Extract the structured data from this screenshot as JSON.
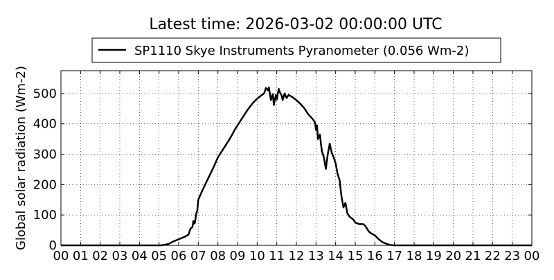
{
  "chart_data": {
    "type": "line",
    "title": "Latest time: 2026-03-02 00:00:00 UTC",
    "xlabel": "",
    "ylabel": "Global solar radiation (Wm-2)",
    "xlim": [
      0,
      24
    ],
    "ylim": [
      0,
      575
    ],
    "grid": true,
    "legend": {
      "placement": "top-center",
      "entries": [
        "SP1110 Skye Instruments Pyranometer (0.056 Wm-2)"
      ]
    },
    "x_ticks": [
      {
        "value": 0,
        "label": "00"
      },
      {
        "value": 1,
        "label": "01"
      },
      {
        "value": 2,
        "label": "02"
      },
      {
        "value": 3,
        "label": "03"
      },
      {
        "value": 4,
        "label": "04"
      },
      {
        "value": 5,
        "label": "05"
      },
      {
        "value": 6,
        "label": "06"
      },
      {
        "value": 7,
        "label": "07"
      },
      {
        "value": 8,
        "label": "08"
      },
      {
        "value": 9,
        "label": "09"
      },
      {
        "value": 10,
        "label": "10"
      },
      {
        "value": 11,
        "label": "11"
      },
      {
        "value": 12,
        "label": "12"
      },
      {
        "value": 13,
        "label": "13"
      },
      {
        "value": 14,
        "label": "14"
      },
      {
        "value": 15,
        "label": "15"
      },
      {
        "value": 16,
        "label": "16"
      },
      {
        "value": 17,
        "label": "17"
      },
      {
        "value": 18,
        "label": "18"
      },
      {
        "value": 19,
        "label": "19"
      },
      {
        "value": 20,
        "label": "20"
      },
      {
        "value": 21,
        "label": "21"
      },
      {
        "value": 22,
        "label": "22"
      },
      {
        "value": 23,
        "label": "23"
      },
      {
        "value": 24,
        "label": "00"
      }
    ],
    "y_ticks": [
      {
        "value": 0,
        "label": "0"
      },
      {
        "value": 100,
        "label": "100"
      },
      {
        "value": 200,
        "label": "200"
      },
      {
        "value": 300,
        "label": "300"
      },
      {
        "value": 400,
        "label": "400"
      },
      {
        "value": 500,
        "label": "500"
      }
    ],
    "series": [
      {
        "name": "SP1110 Skye Instruments Pyranometer (0.056 Wm-2)",
        "color": "#000000",
        "points": [
          [
            0,
            0
          ],
          [
            5.1,
            0
          ],
          [
            5.3,
            2
          ],
          [
            5.5,
            5
          ],
          [
            5.7,
            12
          ],
          [
            6.0,
            20
          ],
          [
            6.3,
            28
          ],
          [
            6.5,
            35
          ],
          [
            6.6,
            55
          ],
          [
            6.7,
            60
          ],
          [
            6.75,
            80
          ],
          [
            6.82,
            72
          ],
          [
            6.9,
            105
          ],
          [
            6.95,
            115
          ],
          [
            7.0,
            150
          ],
          [
            7.2,
            180
          ],
          [
            7.5,
            220
          ],
          [
            7.8,
            260
          ],
          [
            8.0,
            290
          ],
          [
            8.3,
            320
          ],
          [
            8.6,
            350
          ],
          [
            8.9,
            385
          ],
          [
            9.2,
            415
          ],
          [
            9.5,
            445
          ],
          [
            9.8,
            470
          ],
          [
            10.0,
            483
          ],
          [
            10.2,
            493
          ],
          [
            10.35,
            500
          ],
          [
            10.45,
            518
          ],
          [
            10.55,
            510
          ],
          [
            10.6,
            520
          ],
          [
            10.7,
            478
          ],
          [
            10.8,
            498
          ],
          [
            10.85,
            462
          ],
          [
            10.95,
            495
          ],
          [
            11.0,
            480
          ],
          [
            11.1,
            515
          ],
          [
            11.15,
            505
          ],
          [
            11.25,
            493
          ],
          [
            11.3,
            478
          ],
          [
            11.4,
            500
          ],
          [
            11.5,
            485
          ],
          [
            11.6,
            495
          ],
          [
            11.7,
            492
          ],
          [
            11.8,
            488
          ],
          [
            12.0,
            478
          ],
          [
            12.2,
            466
          ],
          [
            12.4,
            452
          ],
          [
            12.6,
            432
          ],
          [
            12.8,
            418
          ],
          [
            12.95,
            405
          ],
          [
            13.0,
            380
          ],
          [
            13.05,
            395
          ],
          [
            13.1,
            350
          ],
          [
            13.2,
            365
          ],
          [
            13.25,
            335
          ],
          [
            13.3,
            310
          ],
          [
            13.4,
            290
          ],
          [
            13.5,
            252
          ],
          [
            13.6,
            300
          ],
          [
            13.7,
            335
          ],
          [
            13.8,
            305
          ],
          [
            13.9,
            290
          ],
          [
            14.0,
            270
          ],
          [
            14.1,
            235
          ],
          [
            14.2,
            215
          ],
          [
            14.3,
            160
          ],
          [
            14.4,
            125
          ],
          [
            14.5,
            140
          ],
          [
            14.6,
            105
          ],
          [
            14.7,
            95
          ],
          [
            14.9,
            85
          ],
          [
            15.0,
            75
          ],
          [
            15.2,
            70
          ],
          [
            15.4,
            70
          ],
          [
            15.5,
            65
          ],
          [
            15.7,
            45
          ],
          [
            15.8,
            40
          ],
          [
            16.0,
            33
          ],
          [
            16.2,
            20
          ],
          [
            16.4,
            10
          ],
          [
            16.6,
            5
          ],
          [
            16.8,
            1
          ],
          [
            17.0,
            0
          ],
          [
            24,
            0
          ]
        ]
      }
    ]
  }
}
